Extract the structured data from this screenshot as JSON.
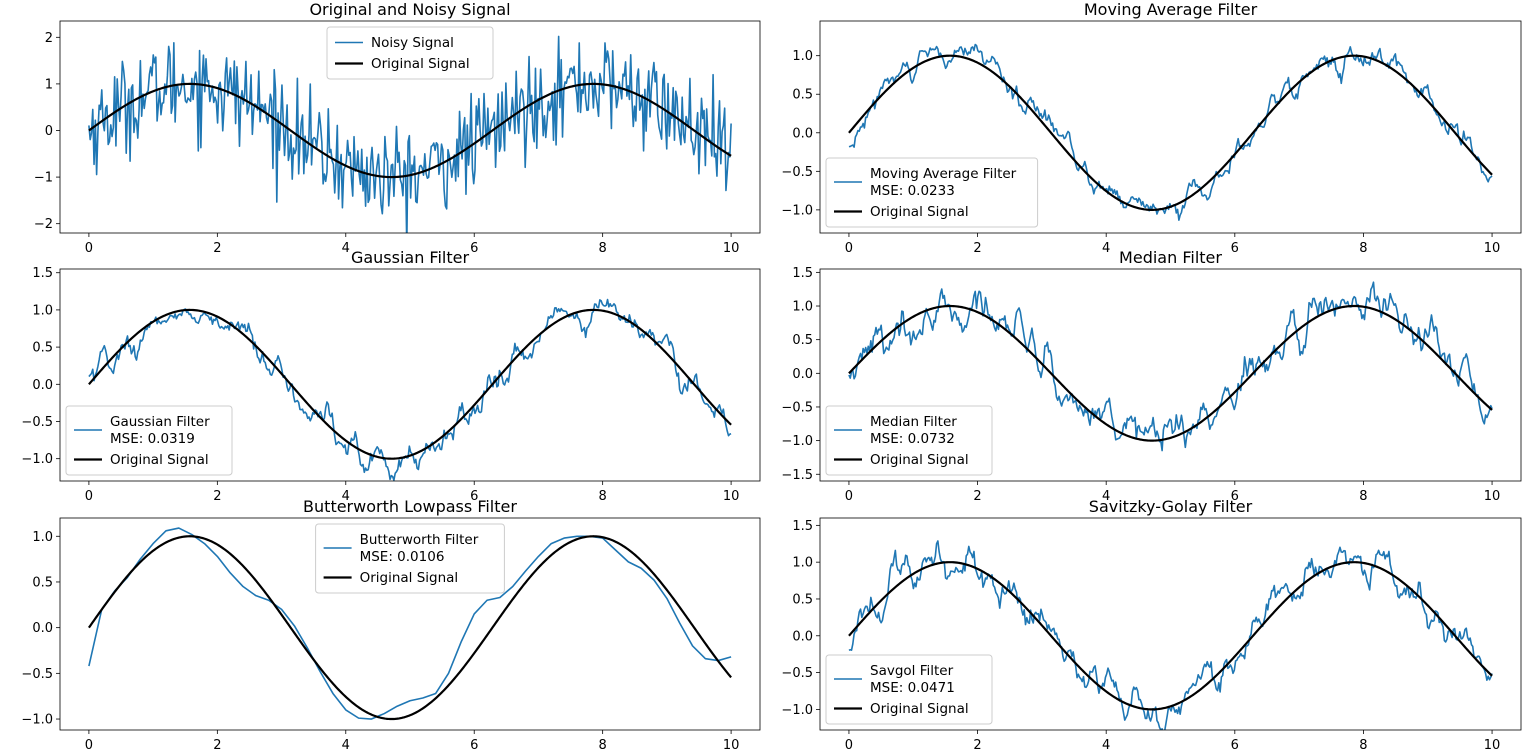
{
  "colors": {
    "filtered": "#1f77b4",
    "original": "#000000"
  },
  "chart_data": [
    {
      "type": "line",
      "title": "Original and Noisy Signal",
      "xlim": [
        0,
        10
      ],
      "ylim": [
        -2.2,
        2.35
      ],
      "xticks": [
        0,
        2,
        4,
        6,
        8,
        10
      ],
      "xtick_labels": [
        "0",
        "2",
        "4",
        "6",
        "8",
        "10"
      ],
      "yticks": [
        -2,
        -1,
        0,
        1,
        2
      ],
      "ytick_labels": [
        "−2",
        "−1",
        "0",
        "1",
        "2"
      ],
      "legend_position": "upper-center",
      "series": [
        {
          "name": "Noisy Signal",
          "kind": "noisy",
          "color": "#1f77b4",
          "noise_amplitude": 0.5,
          "x": [
            0,
            10
          ]
        },
        {
          "name": "Original Signal",
          "kind": "sine",
          "color": "#000000",
          "x": [
            0,
            10
          ]
        }
      ]
    },
    {
      "type": "line",
      "title": "Moving Average Filter",
      "xlim": [
        0,
        10
      ],
      "ylim": [
        -1.3,
        1.45
      ],
      "xticks": [
        0,
        2,
        4,
        6,
        8,
        10
      ],
      "xtick_labels": [
        "0",
        "2",
        "4",
        "6",
        "8",
        "10"
      ],
      "yticks": [
        -1.0,
        -0.5,
        0.0,
        0.5,
        1.0
      ],
      "ytick_labels": [
        "−1.0",
        "−0.5",
        "0.0",
        "0.5",
        "1.0"
      ],
      "legend_position": "lower-left",
      "series": [
        {
          "name": "Moving Average Filter",
          "mse_label": "MSE: 0.0233",
          "kind": "filtered",
          "color": "#1f77b4",
          "noise_amplitude": 0.13
        },
        {
          "name": "Original Signal",
          "kind": "sine",
          "color": "#000000"
        }
      ]
    },
    {
      "type": "line",
      "title": "Gaussian Filter",
      "xlim": [
        0,
        10
      ],
      "ylim": [
        -1.3,
        1.55
      ],
      "xticks": [
        0,
        2,
        4,
        6,
        8,
        10
      ],
      "xtick_labels": [
        "0",
        "2",
        "4",
        "6",
        "8",
        "10"
      ],
      "yticks": [
        -1.0,
        -0.5,
        0.0,
        0.5,
        1.0,
        1.5
      ],
      "ytick_labels": [
        "−1.0",
        "−0.5",
        "0.0",
        "0.5",
        "1.0",
        "1.5"
      ],
      "legend_position": "lower-left",
      "series": [
        {
          "name": "Gaussian Filter",
          "mse_label": "MSE: 0.0319",
          "kind": "filtered",
          "color": "#1f77b4",
          "noise_amplitude": 0.16
        },
        {
          "name": "Original Signal",
          "kind": "sine",
          "color": "#000000"
        }
      ]
    },
    {
      "type": "line",
      "title": "Median Filter",
      "xlim": [
        0,
        10
      ],
      "ylim": [
        -1.6,
        1.55
      ],
      "xticks": [
        0,
        2,
        4,
        6,
        8,
        10
      ],
      "xtick_labels": [
        "0",
        "2",
        "4",
        "6",
        "8",
        "10"
      ],
      "yticks": [
        -1.5,
        -1.0,
        -0.5,
        0.0,
        0.5,
        1.0,
        1.5
      ],
      "ytick_labels": [
        "−1.5",
        "−1.0",
        "−0.5",
        "0.0",
        "0.5",
        "1.0",
        "1.5"
      ],
      "legend_position": "lower-left",
      "series": [
        {
          "name": "Median Filter",
          "mse_label": "MSE: 0.0732",
          "kind": "filtered",
          "color": "#1f77b4",
          "noise_amplitude": 0.26
        },
        {
          "name": "Original Signal",
          "kind": "sine",
          "color": "#000000"
        }
      ]
    },
    {
      "type": "line",
      "title": "Butterworth Lowpass Filter",
      "xlim": [
        0,
        10
      ],
      "ylim": [
        -1.12,
        1.2
      ],
      "xticks": [
        0,
        2,
        4,
        6,
        8,
        10
      ],
      "xtick_labels": [
        "0",
        "2",
        "4",
        "6",
        "8",
        "10"
      ],
      "yticks": [
        -1.0,
        -0.5,
        0.0,
        0.5,
        1.0
      ],
      "ytick_labels": [
        "−1.0",
        "−0.5",
        "0.0",
        "0.5",
        "1.0"
      ],
      "legend_position": "upper-center",
      "series": [
        {
          "name": "Butterworth Filter",
          "mse_label": "MSE: 0.0106",
          "kind": "points",
          "color": "#1f77b4",
          "x": [
            0,
            0.2,
            0.4,
            0.6,
            0.8,
            1.0,
            1.2,
            1.4,
            1.6,
            1.8,
            2.0,
            2.2,
            2.4,
            2.6,
            2.8,
            3.0,
            3.2,
            3.4,
            3.6,
            3.8,
            4.0,
            4.2,
            4.4,
            4.6,
            4.8,
            5.0,
            5.2,
            5.4,
            5.6,
            5.8,
            6.0,
            6.2,
            6.4,
            6.6,
            6.8,
            7.0,
            7.2,
            7.4,
            7.6,
            7.8,
            8.0,
            8.2,
            8.4,
            8.6,
            8.8,
            9.0,
            9.2,
            9.4,
            9.6,
            9.8,
            10.0
          ],
          "y": [
            -0.42,
            0.2,
            0.4,
            0.55,
            0.75,
            0.92,
            1.06,
            1.09,
            1.02,
            0.92,
            0.78,
            0.6,
            0.45,
            0.35,
            0.3,
            0.2,
            0.02,
            -0.22,
            -0.48,
            -0.72,
            -0.9,
            -0.99,
            -1.0,
            -0.94,
            -0.86,
            -0.8,
            -0.77,
            -0.72,
            -0.5,
            -0.15,
            0.15,
            0.3,
            0.33,
            0.45,
            0.62,
            0.78,
            0.92,
            0.98,
            1.0,
            1.0,
            0.98,
            0.85,
            0.72,
            0.65,
            0.52,
            0.32,
            0.05,
            -0.2,
            -0.34,
            -0.36,
            -0.32
          ]
        },
        {
          "name": "Original Signal",
          "kind": "sine",
          "color": "#000000"
        }
      ]
    },
    {
      "type": "line",
      "title": "Savitzky-Golay Filter",
      "xlim": [
        0,
        10
      ],
      "ylim": [
        -1.28,
        1.6
      ],
      "xticks": [
        0,
        2,
        4,
        6,
        8,
        10
      ],
      "xtick_labels": [
        "0",
        "2",
        "4",
        "6",
        "8",
        "10"
      ],
      "yticks": [
        -1.0,
        -0.5,
        0.0,
        0.5,
        1.0,
        1.5
      ],
      "ytick_labels": [
        "−1.0",
        "−0.5",
        "0.0",
        "0.5",
        "1.0",
        "1.5"
      ],
      "legend_position": "lower-left",
      "series": [
        {
          "name": "Savgol Filter",
          "mse_label": "MSE: 0.0471",
          "kind": "filtered",
          "color": "#1f77b4",
          "noise_amplitude": 0.2
        },
        {
          "name": "Original Signal",
          "kind": "sine",
          "color": "#000000"
        }
      ]
    }
  ]
}
